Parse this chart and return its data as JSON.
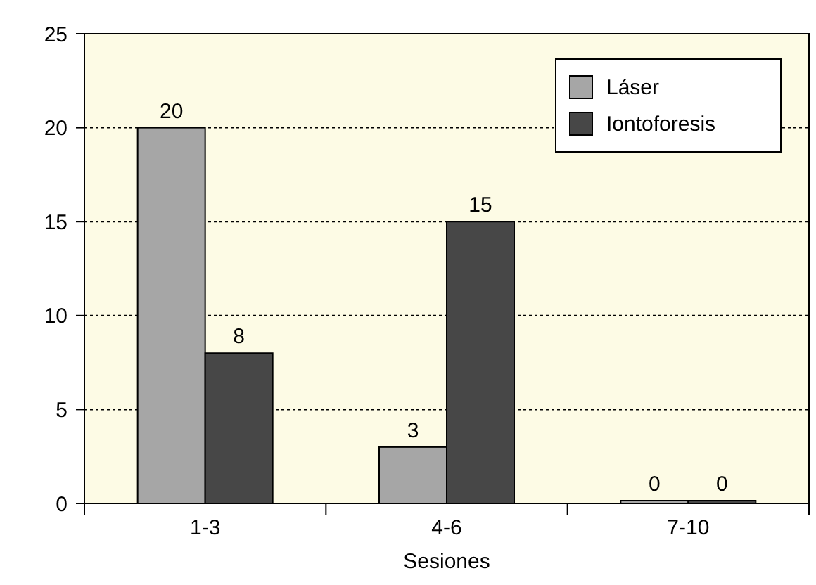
{
  "chart_data": {
    "type": "bar",
    "xlabel": "Sesiones",
    "categories": [
      "1-3",
      "4-6",
      "7-10"
    ],
    "series": [
      {
        "name": "Láser",
        "color": "#a6a6a6",
        "values": [
          20,
          3,
          0
        ]
      },
      {
        "name": "Iontoforesis",
        "color": "#474747",
        "values": [
          8,
          15,
          0
        ]
      }
    ],
    "ylim": [
      0,
      25
    ],
    "yticks": [
      0,
      5,
      10,
      15,
      20,
      25
    ],
    "grid": "y",
    "legend": "top right",
    "data_labels": true
  }
}
